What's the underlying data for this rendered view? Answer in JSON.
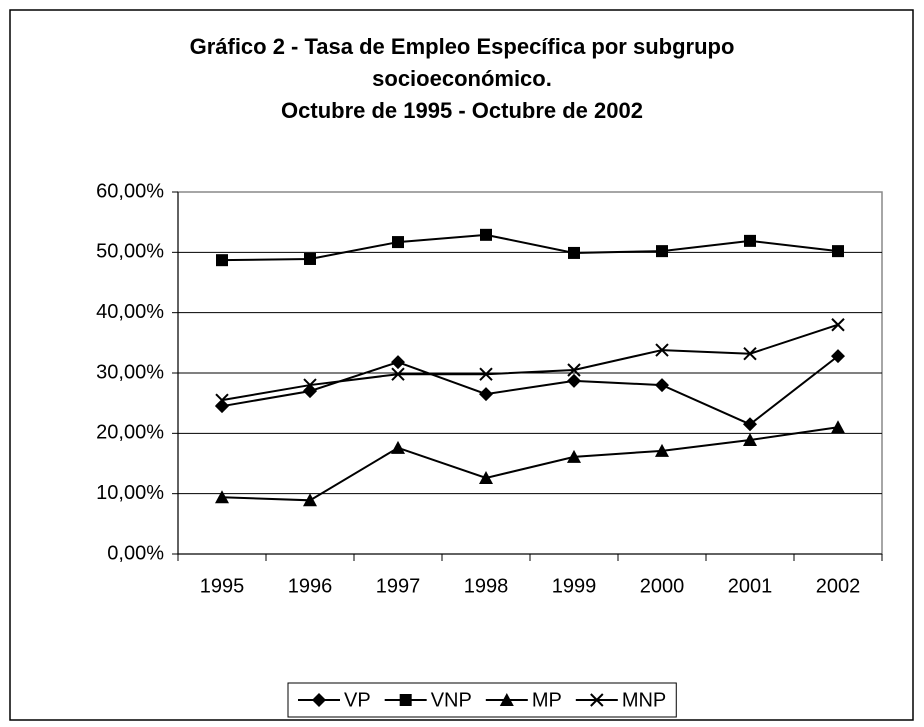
{
  "chart_data": {
    "type": "line",
    "title": [
      "Gráfico 2 - Tasa de Empleo Específica por subgrupo",
      "socioeconómico.",
      "Octubre de 1995 - Octubre de 2002"
    ],
    "categories": [
      "1995",
      "1996",
      "1997",
      "1998",
      "1999",
      "2000",
      "2001",
      "2002"
    ],
    "series": [
      {
        "name": "VP",
        "color": "#000000",
        "marker": "diamond",
        "values": [
          24.5,
          27,
          31.8,
          26.5,
          28.7,
          28,
          21.5,
          32.8
        ]
      },
      {
        "name": "VNP",
        "color": "#000000",
        "marker": "square",
        "values": [
          48.7,
          48.9,
          51.7,
          52.9,
          49.9,
          50.2,
          51.9,
          50.2
        ]
      },
      {
        "name": "MP",
        "color": "#000000",
        "marker": "triangle",
        "values": [
          9.4,
          8.9,
          17.6,
          12.6,
          16.1,
          17.1,
          18.9,
          21
        ]
      },
      {
        "name": "MNP",
        "color": "#000000",
        "marker": "x",
        "values": [
          25.5,
          28,
          29.8,
          29.8,
          30.5,
          33.8,
          33.2,
          38
        ]
      }
    ],
    "ylim": [
      0,
      60
    ],
    "yticks": [
      {
        "value": 0,
        "label": "0,00%"
      },
      {
        "value": 10,
        "label": "10,00%"
      },
      {
        "value": 20,
        "label": "20,00%"
      },
      {
        "value": 30,
        "label": "30,00%"
      },
      {
        "value": 40,
        "label": "40,00%"
      },
      {
        "value": 50,
        "label": "50,00%"
      },
      {
        "value": 60,
        "label": "60,00%"
      }
    ],
    "grid": true,
    "legend": "bottom"
  }
}
